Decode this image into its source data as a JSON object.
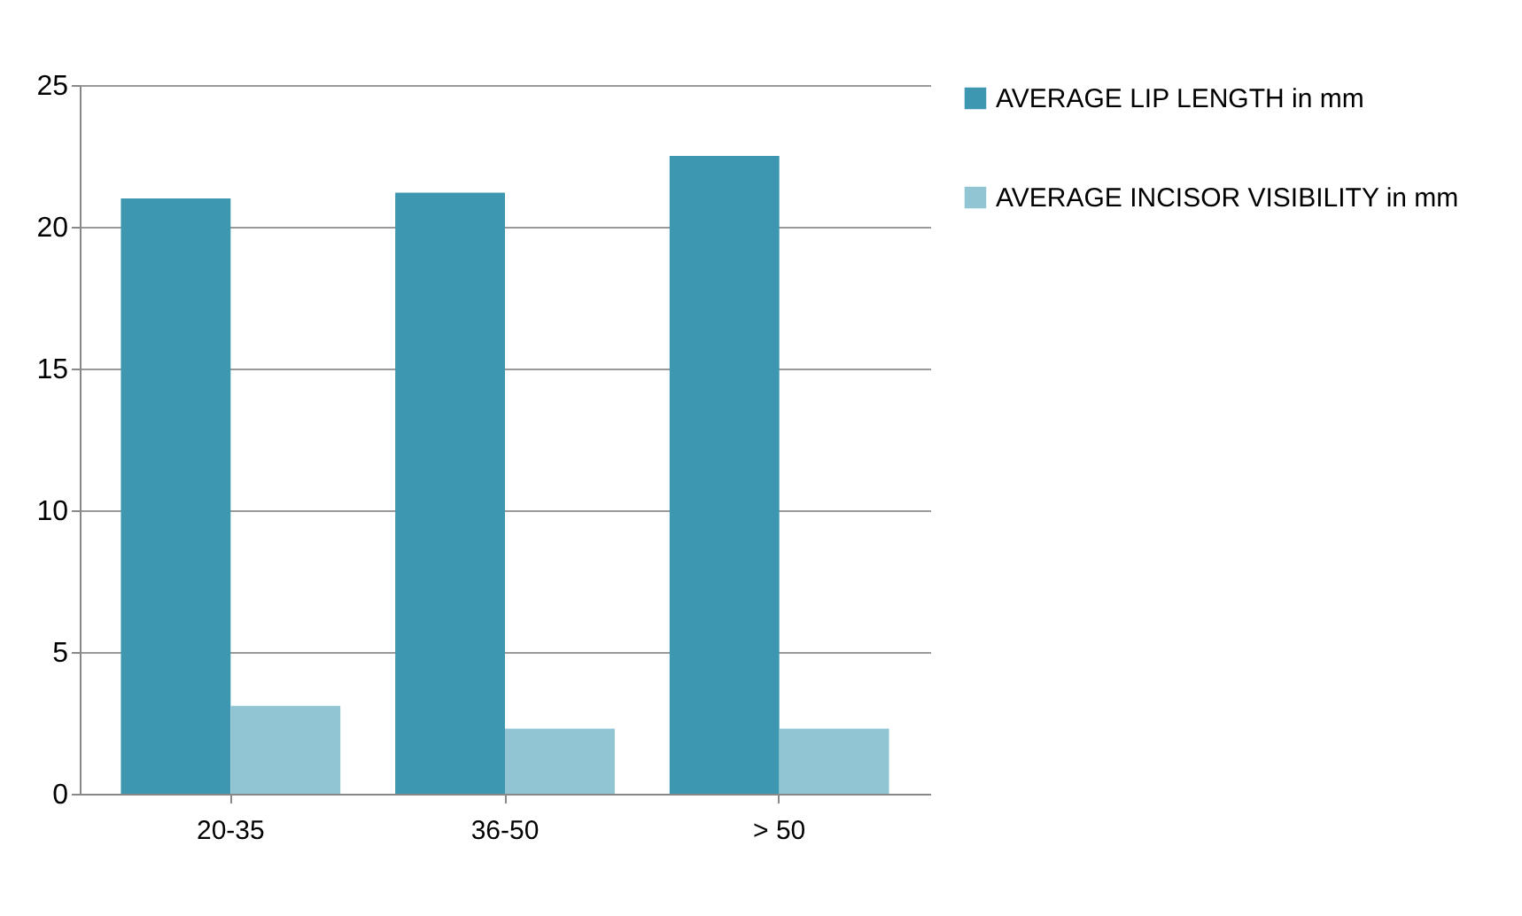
{
  "chart_data": {
    "type": "bar",
    "categories": [
      "20-35",
      "36-50",
      "> 50"
    ],
    "series": [
      {
        "name": "AVERAGE LIP LENGTH in mm",
        "color": "#3e97b0",
        "values": [
          21.0,
          21.2,
          22.5
        ]
      },
      {
        "name": "AVERAGE INCISOR VISIBILITY in mm",
        "color": "#92c5d4",
        "values": [
          3.1,
          2.3,
          2.3
        ]
      }
    ],
    "ylim": [
      0,
      25
    ],
    "yticks": [
      0,
      5,
      10,
      15,
      20,
      25
    ],
    "grid": "y",
    "legend": "right"
  }
}
